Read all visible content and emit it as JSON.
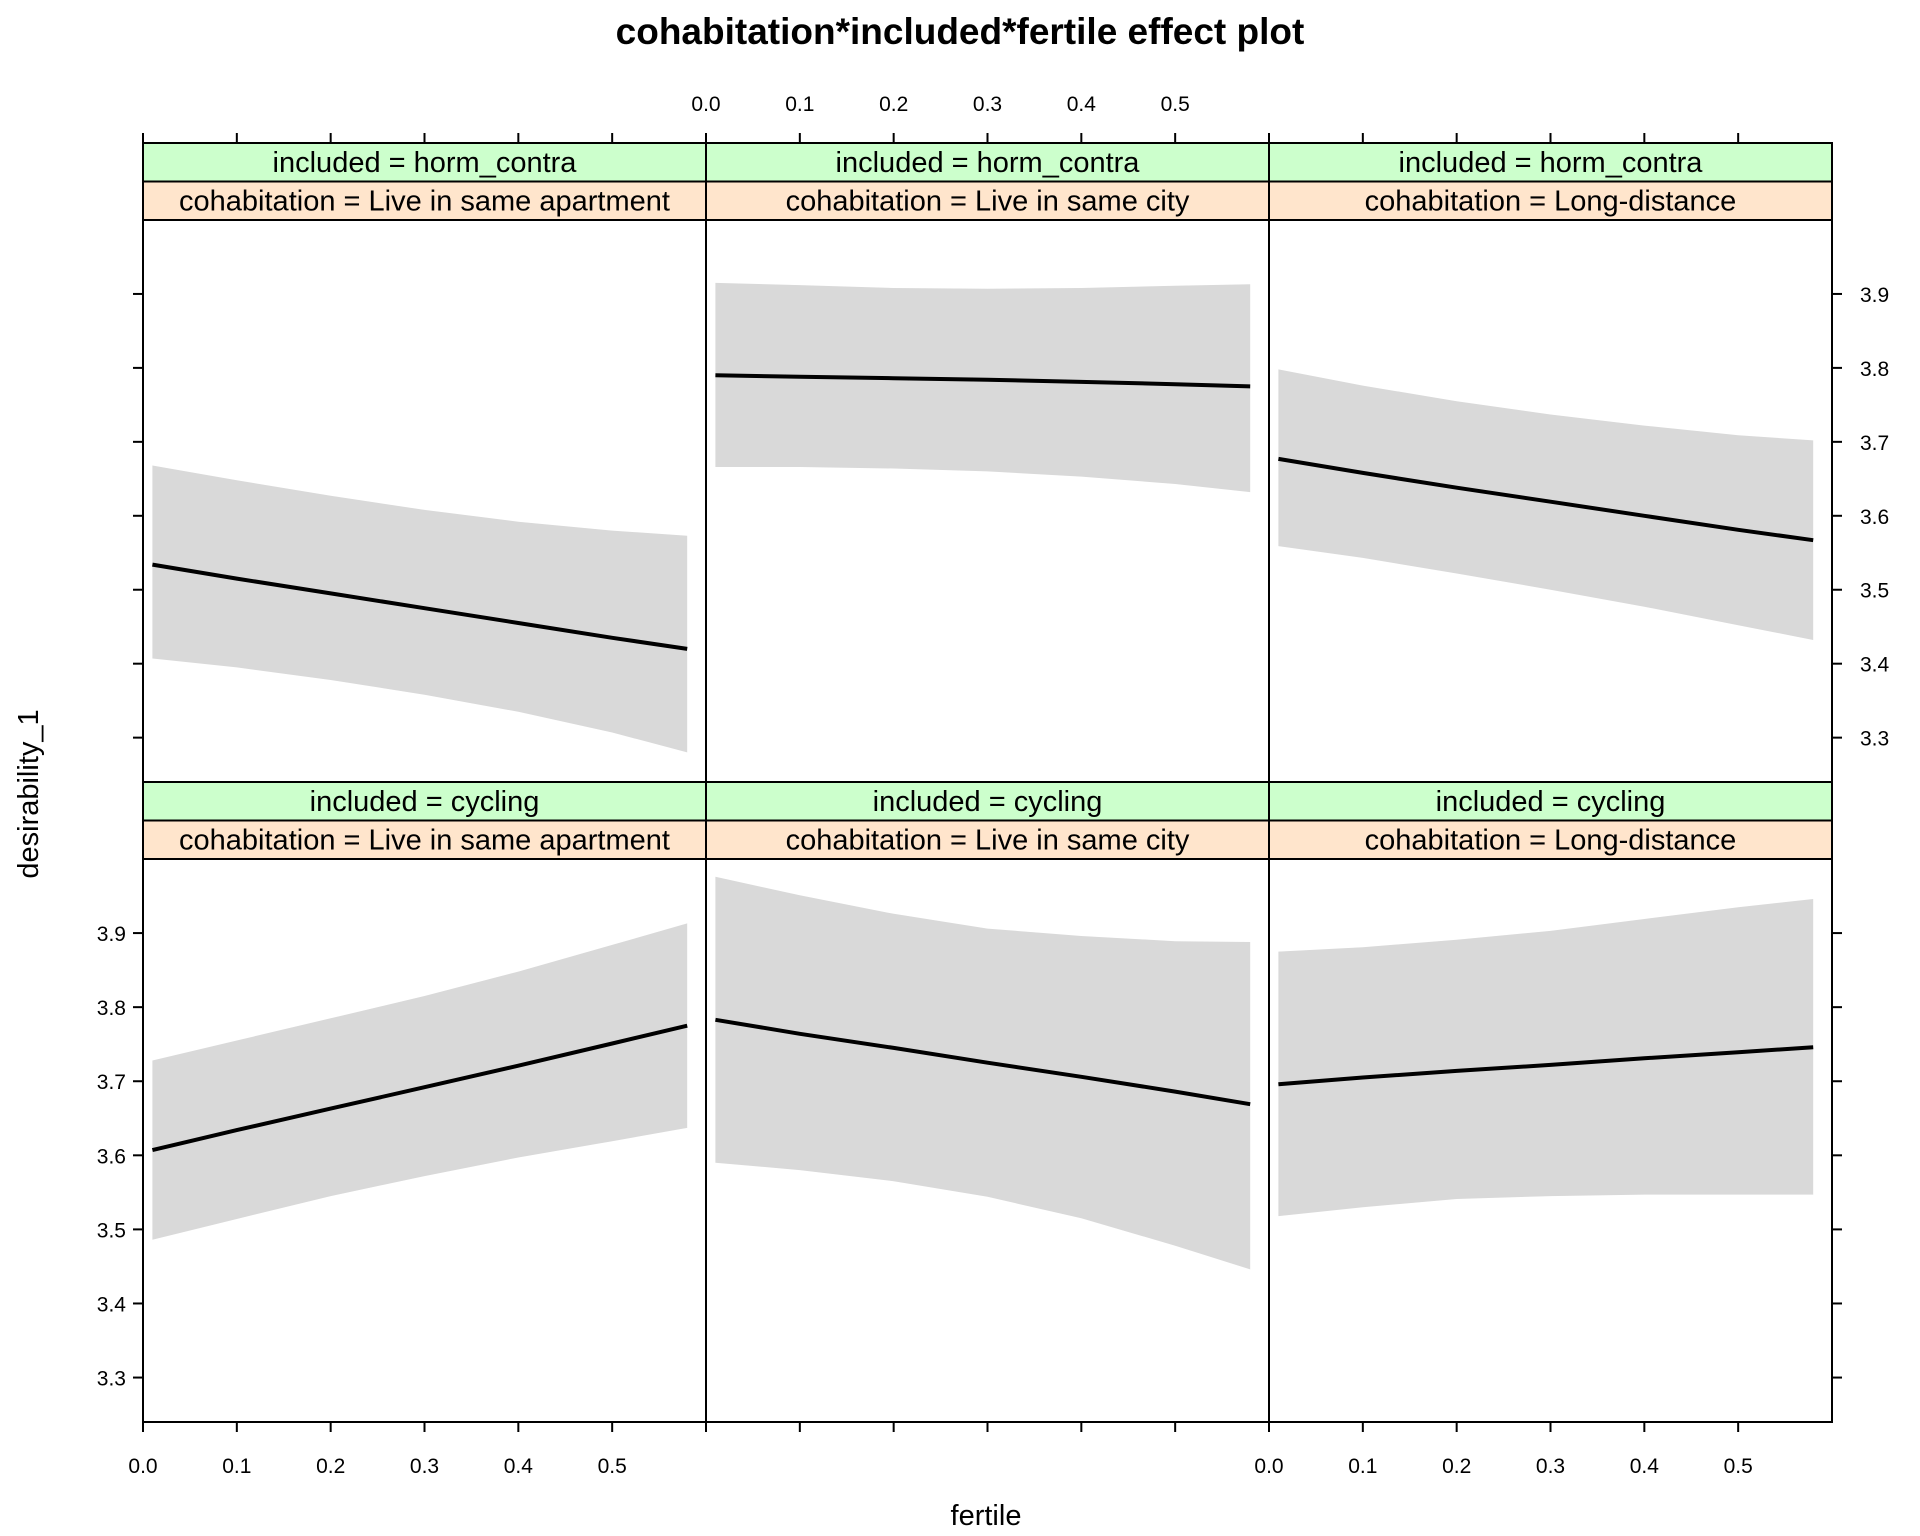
{
  "chart_data": {
    "type": "line",
    "title": "cohabitation*included*fertile effect plot",
    "xlabel": "fertile",
    "ylabel": "desirability_1",
    "xlim": [
      0.0,
      0.6
    ],
    "ylim": [
      3.24,
      4.0
    ],
    "x_ticks": [
      0.0,
      0.1,
      0.2,
      0.3,
      0.4,
      0.5
    ],
    "x_tick_labels": [
      "0.0",
      "0.1",
      "0.2",
      "0.3",
      "0.4",
      "0.5"
    ],
    "y_ticks": [
      3.3,
      3.4,
      3.5,
      3.6,
      3.7,
      3.8,
      3.9
    ],
    "y_tick_labels": [
      "3.3",
      "3.4",
      "3.5",
      "3.6",
      "3.7",
      "3.8",
      "3.9"
    ],
    "grid": false,
    "band_color": "#d9d9d9",
    "line_color": "#000000",
    "strip_colors": {
      "included": "#ccffcc",
      "cohabitation": "#ffe5cc"
    },
    "panels": [
      {
        "included_label": "included = horm_contra",
        "cohabitation_label": "cohabitation = Live in same apartment",
        "x": [
          0.01,
          0.1,
          0.2,
          0.3,
          0.4,
          0.5,
          0.58
        ],
        "fit": [
          3.534,
          3.515,
          3.495,
          3.475,
          3.455,
          3.435,
          3.42
        ],
        "lower": [
          3.407,
          3.395,
          3.378,
          3.358,
          3.335,
          3.307,
          3.28
        ],
        "upper": [
          3.668,
          3.648,
          3.627,
          3.608,
          3.592,
          3.58,
          3.573
        ]
      },
      {
        "included_label": "included = horm_contra",
        "cohabitation_label": "cohabitation = Live in same city",
        "x": [
          0.01,
          0.1,
          0.2,
          0.3,
          0.4,
          0.5,
          0.58
        ],
        "fit": [
          3.79,
          3.788,
          3.786,
          3.784,
          3.781,
          3.778,
          3.775
        ],
        "lower": [
          3.666,
          3.666,
          3.664,
          3.66,
          3.653,
          3.643,
          3.632
        ],
        "upper": [
          3.915,
          3.912,
          3.908,
          3.907,
          3.908,
          3.911,
          3.913
        ]
      },
      {
        "included_label": "included = horm_contra",
        "cohabitation_label": "cohabitation = Long-distance",
        "x": [
          0.01,
          0.1,
          0.2,
          0.3,
          0.4,
          0.5,
          0.58
        ],
        "fit": [
          3.677,
          3.658,
          3.638,
          3.619,
          3.6,
          3.581,
          3.567
        ],
        "lower": [
          3.559,
          3.543,
          3.522,
          3.5,
          3.477,
          3.452,
          3.432
        ],
        "upper": [
          3.798,
          3.776,
          3.755,
          3.737,
          3.722,
          3.709,
          3.702
        ]
      },
      {
        "included_label": "included = cycling",
        "cohabitation_label": "cohabitation = Live in same apartment",
        "x": [
          0.01,
          0.1,
          0.2,
          0.3,
          0.4,
          0.5,
          0.58
        ],
        "fit": [
          3.607,
          3.634,
          3.663,
          3.692,
          3.721,
          3.751,
          3.775
        ],
        "lower": [
          3.486,
          3.514,
          3.545,
          3.572,
          3.597,
          3.619,
          3.637
        ],
        "upper": [
          3.728,
          3.755,
          3.785,
          3.815,
          3.848,
          3.884,
          3.913
        ]
      },
      {
        "included_label": "included = cycling",
        "cohabitation_label": "cohabitation = Live in same city",
        "x": [
          0.01,
          0.1,
          0.2,
          0.3,
          0.4,
          0.5,
          0.58
        ],
        "fit": [
          3.783,
          3.764,
          3.745,
          3.725,
          3.706,
          3.686,
          3.669
        ],
        "lower": [
          3.59,
          3.58,
          3.565,
          3.544,
          3.515,
          3.478,
          3.446
        ],
        "upper": [
          3.976,
          3.951,
          3.926,
          3.906,
          3.896,
          3.889,
          3.888
        ]
      },
      {
        "included_label": "included = cycling",
        "cohabitation_label": "cohabitation = Long-distance",
        "x": [
          0.01,
          0.1,
          0.2,
          0.3,
          0.4,
          0.5,
          0.58
        ],
        "fit": [
          3.696,
          3.705,
          3.714,
          3.722,
          3.731,
          3.739,
          3.746
        ],
        "lower": [
          3.518,
          3.53,
          3.541,
          3.545,
          3.547,
          3.547,
          3.547
        ],
        "upper": [
          3.875,
          3.881,
          3.891,
          3.903,
          3.919,
          3.935,
          3.946
        ]
      }
    ]
  }
}
